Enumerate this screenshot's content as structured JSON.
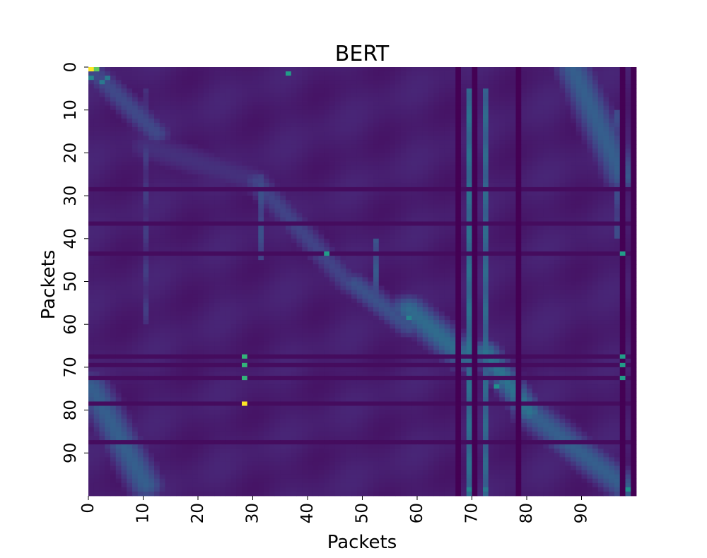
{
  "chart_data": {
    "type": "heatmap",
    "title": "BERT",
    "xlabel": "Packets",
    "ylabel": "Packets",
    "rows": 100,
    "cols": 100,
    "xlim": [
      0,
      100
    ],
    "ylim": [
      0,
      100
    ],
    "colormap": "viridis",
    "value_range": [
      0,
      1
    ],
    "grid": false,
    "colorbar": false,
    "x_ticks": [
      0,
      10,
      20,
      30,
      40,
      50,
      60,
      70,
      80,
      90
    ],
    "y_ticks": [
      0,
      10,
      20,
      30,
      40,
      50,
      60,
      70,
      80,
      90
    ],
    "background_level": 0.08,
    "diagonal_bands": [
      {
        "x0": 0,
        "y0": 0,
        "x1": 12,
        "y1": 15,
        "peak": 0.22,
        "width": 2
      },
      {
        "x0": 10,
        "y0": 18,
        "x1": 30,
        "y1": 26,
        "peak": 0.14,
        "width": 3
      },
      {
        "x0": 30,
        "y0": 26,
        "x1": 47,
        "y1": 50,
        "peak": 0.2,
        "width": 2
      },
      {
        "x0": 48,
        "y0": 50,
        "x1": 58,
        "y1": 60,
        "peak": 0.25,
        "width": 2
      },
      {
        "x0": 58,
        "y0": 56,
        "x1": 68,
        "y1": 67,
        "peak": 0.35,
        "width": 2.5
      },
      {
        "x0": 72,
        "y0": 66,
        "x1": 80,
        "y1": 80,
        "peak": 0.38,
        "width": 2
      },
      {
        "x0": 0,
        "y0": 74,
        "x1": 10,
        "y1": 97,
        "peak": 0.3,
        "width": 2.5
      },
      {
        "x0": 88,
        "y0": 0,
        "x1": 97,
        "y1": 25,
        "peak": 0.3,
        "width": 2.5
      },
      {
        "x0": 80,
        "y0": 80,
        "x1": 98,
        "y1": 98,
        "peak": 0.3,
        "width": 2.5
      }
    ],
    "bright_columns": [
      {
        "col": 69,
        "level": 0.35,
        "rows": [
          5,
          100
        ]
      },
      {
        "col": 72,
        "level": 0.32,
        "rows": [
          5,
          100
        ]
      },
      {
        "col": 52,
        "level": 0.25,
        "rows": [
          40,
          55
        ]
      },
      {
        "col": 31,
        "level": 0.22,
        "rows": [
          25,
          45
        ]
      },
      {
        "col": 10,
        "level": 0.15,
        "rows": [
          5,
          60
        ]
      },
      {
        "col": 96,
        "level": 0.2,
        "rows": [
          10,
          40
        ]
      }
    ],
    "dark_columns": [
      67,
      70,
      78,
      97,
      99
    ],
    "dark_rows": [
      28,
      36,
      43,
      67,
      69,
      72,
      78,
      87
    ],
    "hotspots": [
      {
        "row": 0,
        "col": 0,
        "value": 1.0
      },
      {
        "row": 0,
        "col": 1,
        "value": 0.75
      },
      {
        "row": 1,
        "col": 36,
        "value": 0.55
      },
      {
        "row": 2,
        "col": 0,
        "value": 0.45
      },
      {
        "row": 2,
        "col": 3,
        "value": 0.4
      },
      {
        "row": 3,
        "col": 2,
        "value": 0.4
      },
      {
        "row": 43,
        "col": 43,
        "value": 0.55
      },
      {
        "row": 43,
        "col": 97,
        "value": 0.55
      },
      {
        "row": 67,
        "col": 28,
        "value": 0.65
      },
      {
        "row": 69,
        "col": 28,
        "value": 0.65
      },
      {
        "row": 72,
        "col": 28,
        "value": 0.65
      },
      {
        "row": 78,
        "col": 28,
        "value": 1.0
      },
      {
        "row": 67,
        "col": 97,
        "value": 0.55
      },
      {
        "row": 69,
        "col": 97,
        "value": 0.55
      },
      {
        "row": 72,
        "col": 97,
        "value": 0.55
      },
      {
        "row": 74,
        "col": 74,
        "value": 0.5
      },
      {
        "row": 58,
        "col": 58,
        "value": 0.45
      },
      {
        "row": 98,
        "col": 69,
        "value": 0.45
      },
      {
        "row": 98,
        "col": 72,
        "value": 0.4
      },
      {
        "row": 98,
        "col": 98,
        "value": 0.5
      }
    ]
  }
}
